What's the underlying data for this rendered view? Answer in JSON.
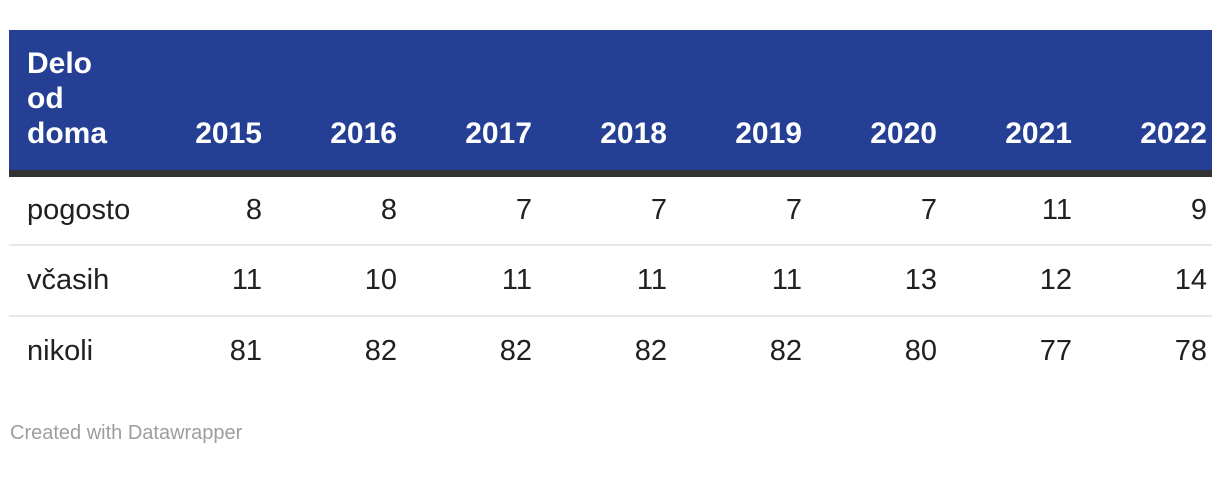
{
  "chart_data": {
    "type": "table",
    "title": "Delo od doma",
    "corner_header": "Delo od doma",
    "columns": [
      "2015",
      "2016",
      "2017",
      "2018",
      "2019",
      "2020",
      "2021",
      "2022"
    ],
    "rows": [
      {
        "label": "pogosto",
        "values": [
          8,
          8,
          7,
          7,
          7,
          7,
          11,
          9
        ]
      },
      {
        "label": "včasih",
        "values": [
          11,
          10,
          11,
          11,
          11,
          13,
          12,
          14
        ]
      },
      {
        "label": "nikoli",
        "values": [
          81,
          82,
          82,
          82,
          82,
          80,
          77,
          78
        ]
      }
    ],
    "layout": {
      "header_alignment": "right",
      "value_alignment": "right",
      "row_label_alignment": "left",
      "grid": "row-dividers-only",
      "legend_position": "none"
    },
    "colors": {
      "header_background": "#243f94",
      "header_text": "#ffffff",
      "header_bottom_border": "#333333",
      "body_text": "#202020",
      "row_divider": "#e8e8e8",
      "credit_text": "#9d9d9d"
    }
  },
  "footer": {
    "credit": "Created with Datawrapper"
  }
}
